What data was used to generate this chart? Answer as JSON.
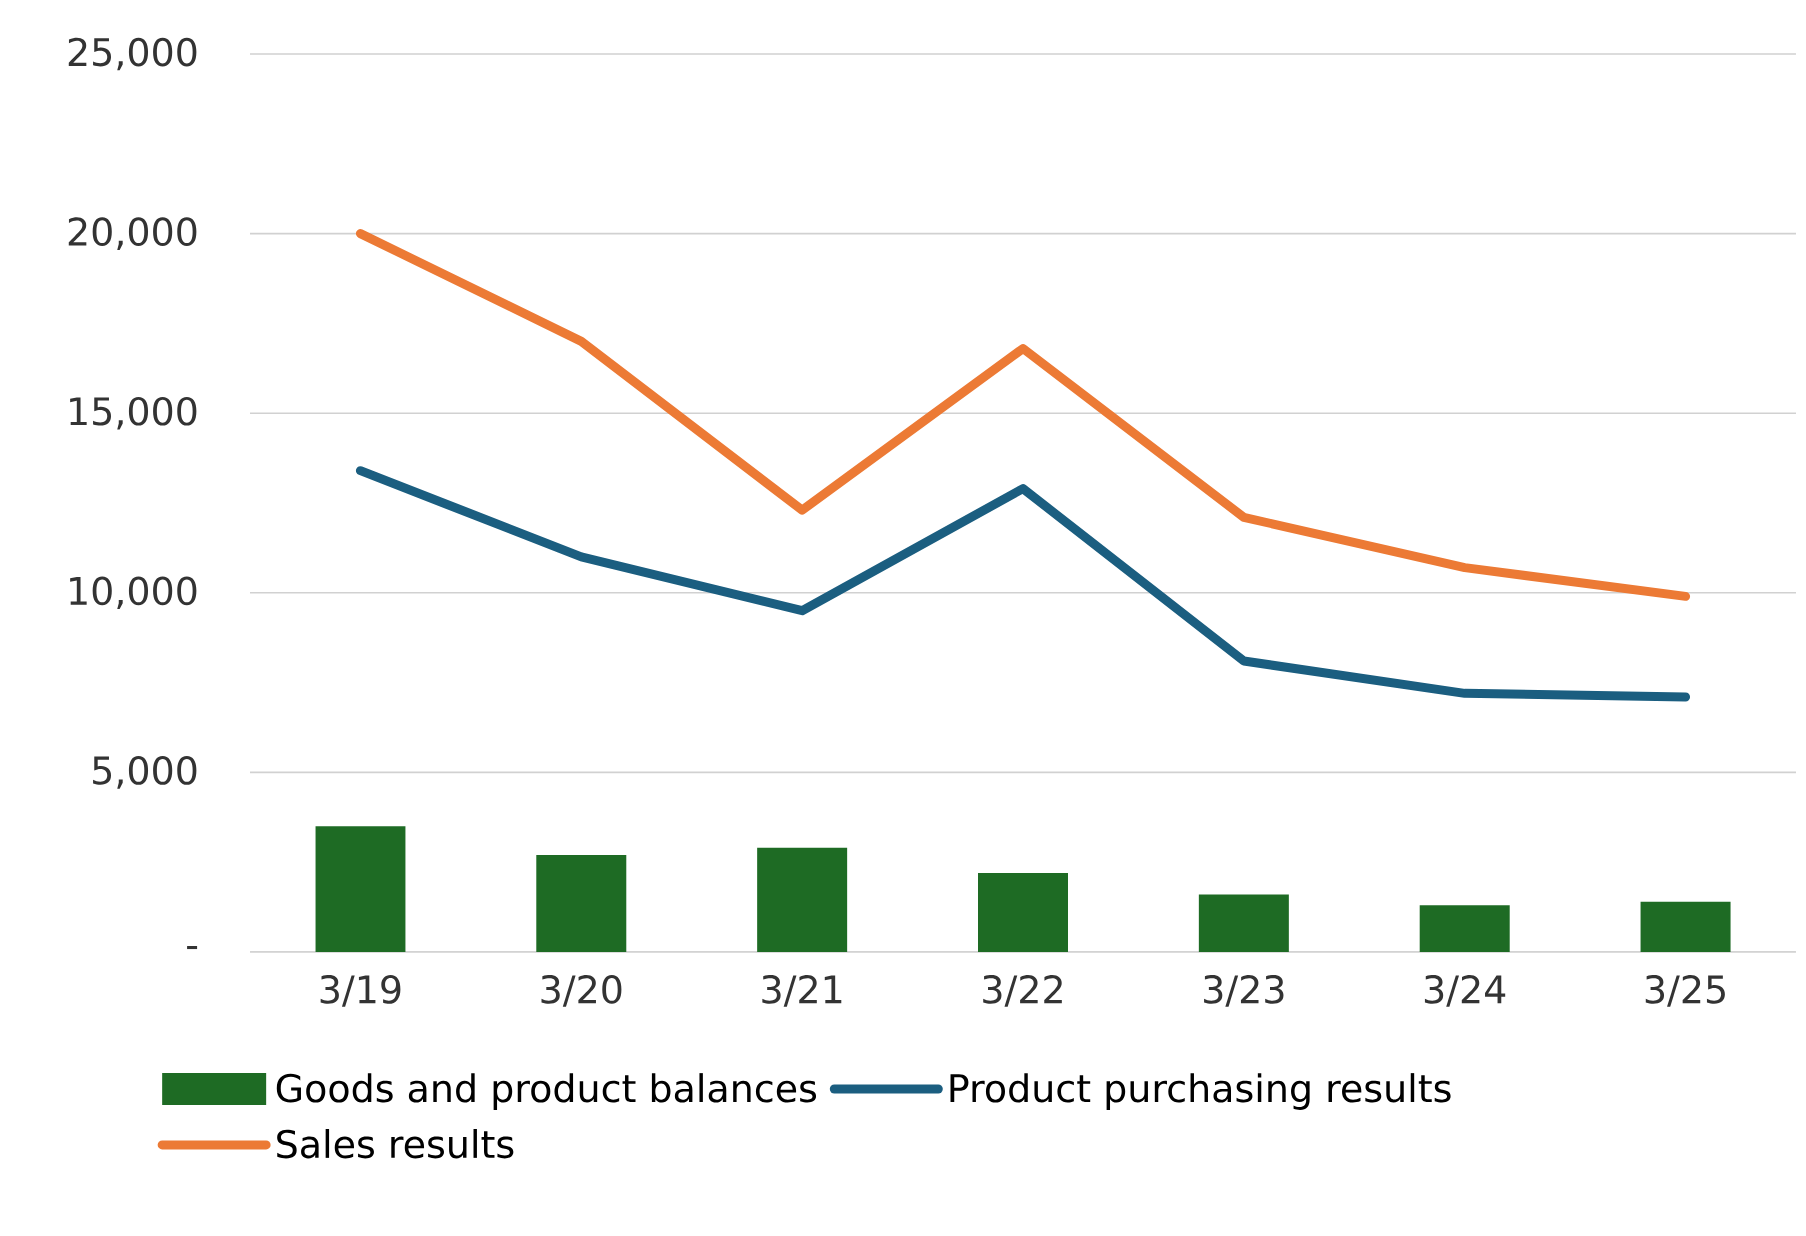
{
  "chart_data": {
    "type": "line",
    "categories": [
      "3/19",
      "3/20",
      "3/21",
      "3/22",
      "3/23",
      "3/24",
      "3/25"
    ],
    "series": [
      {
        "name": "Goods and product balances",
        "type": "bar",
        "color": "#1e6b24",
        "values": [
          3500,
          2700,
          2900,
          2200,
          1600,
          1300,
          1400
        ]
      },
      {
        "name": "Product purchasing results",
        "color": "#1b5e80",
        "values": [
          13400,
          11000,
          9500,
          12900,
          8100,
          7200,
          7100
        ]
      },
      {
        "name": "Sales results",
        "color": "#ec7a35",
        "values": [
          20000,
          17000,
          12300,
          16800,
          12100,
          10700,
          9900
        ]
      }
    ],
    "ylim": [
      0,
      25000
    ],
    "yticks": [
      {
        "value": 0,
        "label": "-"
      },
      {
        "value": 5000,
        "label": "5,000"
      },
      {
        "value": 10000,
        "label": "10,000"
      },
      {
        "value": 15000,
        "label": "15,000"
      },
      {
        "value": 20000,
        "label": "20,000"
      },
      {
        "value": 25000,
        "label": "25,000"
      }
    ],
    "grid": "y",
    "legend": "bottom",
    "marker": "none",
    "line_style": "solid"
  }
}
